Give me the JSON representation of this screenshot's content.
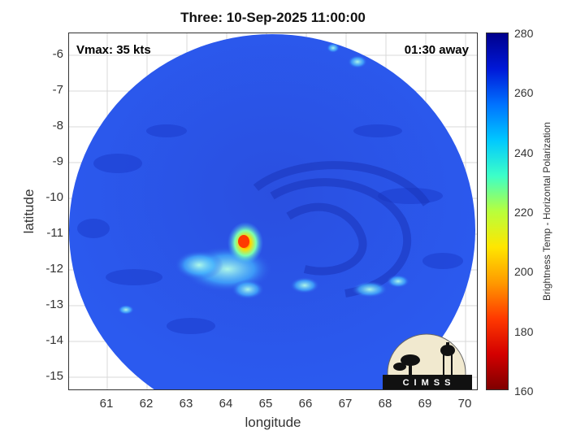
{
  "title": "Three: 10-Sep-2025 11:00:00",
  "vmax_text": "Vmax: 35 kts",
  "away_text": "01:30 away",
  "axes": {
    "xlabel": "longitude",
    "ylabel": "latitude",
    "xticks": [
      "61",
      "62",
      "63",
      "64",
      "65",
      "66",
      "67",
      "68",
      "69",
      "70"
    ],
    "yticks": [
      "-6",
      "-7",
      "-8",
      "-9",
      "-10",
      "-11",
      "-12",
      "-13",
      "-14",
      "-15"
    ],
    "xlim": [
      60.0,
      70.3
    ],
    "ylim": [
      -15.35,
      -5.45
    ]
  },
  "colorbar": {
    "label": "Brightness Temp - Horizontal Polarization",
    "ticks": [
      "280",
      "260",
      "240",
      "220",
      "200",
      "180",
      "160"
    ],
    "range": [
      160,
      280
    ],
    "colormap": "jet"
  },
  "storm_center": {
    "lon": 64.5,
    "lat": -11.2
  },
  "logo_text": "CIMSS",
  "colors": {
    "background_blue": "#2b56e8",
    "cold_core": "#ff3a00",
    "warm_swirl": "#1a39c4"
  }
}
